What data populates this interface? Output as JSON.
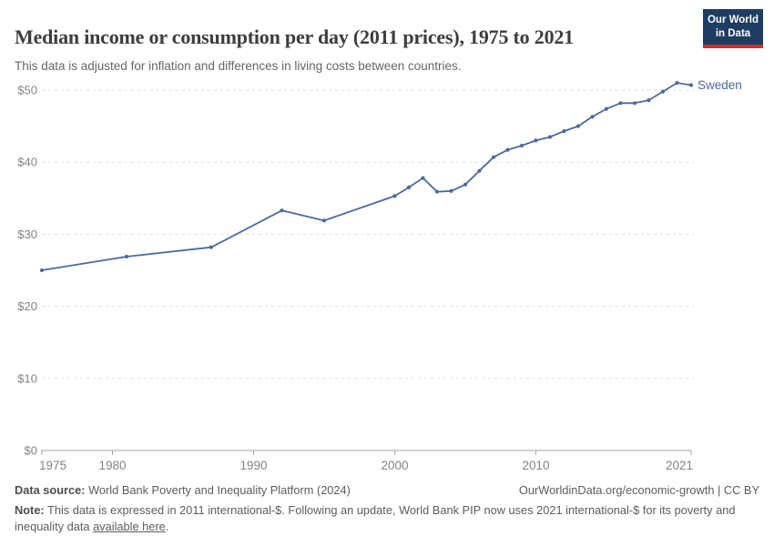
{
  "header": {
    "title": "Median income or consumption per day (2011 prices), 1975 to 2021",
    "subtitle": "This data is adjusted for inflation and differences in living costs between countries.",
    "logo": {
      "line1": "Our World",
      "line2": "in Data"
    }
  },
  "chart_data": {
    "type": "line",
    "title": "Median income or consumption per day (2011 prices), 1975 to 2021",
    "entity_label": "Sweden",
    "x_range": [
      1975,
      2021
    ],
    "ylim": [
      0,
      52
    ],
    "grid": "horizontal-dashed",
    "legend_position": "line-end-label",
    "x": [
      1975,
      1981,
      1987,
      1992,
      1995,
      2000,
      2001,
      2002,
      2003,
      2004,
      2005,
      2006,
      2007,
      2008,
      2009,
      2010,
      2011,
      2012,
      2013,
      2014,
      2015,
      2016,
      2017,
      2018,
      2019,
      2020,
      2021
    ],
    "series": [
      {
        "name": "Sweden",
        "values": [
          25.0,
          26.9,
          28.2,
          33.3,
          31.9,
          35.3,
          36.5,
          37.8,
          35.9,
          36.0,
          36.9,
          38.8,
          40.7,
          41.7,
          42.3,
          43.0,
          43.5,
          44.3,
          45.0,
          46.3,
          47.4,
          48.2,
          48.2,
          48.6,
          49.8,
          51.0,
          50.7
        ]
      }
    ],
    "y_ticks": [
      {
        "value": 0,
        "label": "$0"
      },
      {
        "value": 10,
        "label": "$10"
      },
      {
        "value": 20,
        "label": "$20"
      },
      {
        "value": 30,
        "label": "$30"
      },
      {
        "value": 40,
        "label": "$40"
      },
      {
        "value": 50,
        "label": "$50"
      }
    ],
    "x_ticks": [
      {
        "value": 1975,
        "label": "1975"
      },
      {
        "value": 1980,
        "label": "1980"
      },
      {
        "value": 1990,
        "label": "1990"
      },
      {
        "value": 2000,
        "label": "2000"
      },
      {
        "value": 2010,
        "label": "2010"
      },
      {
        "value": 2021,
        "label": "2021"
      }
    ],
    "colors": {
      "line": "#4c6a9c",
      "entity_label": "#4c6a9c",
      "grid": "#dddddd",
      "axis": "#a3a3a3",
      "tick_text": "#848484"
    }
  },
  "footer": {
    "datasource_label": "Data source:",
    "datasource_value": " World Bank Poverty and Inequality Platform (2024)",
    "credit": "OurWorldinData.org/economic-growth | CC BY",
    "note_label": "Note:",
    "note_text_before_link": " This data is expressed in 2011 international-$. Following an update, World Bank PIP now uses 2021 international-$ for its poverty and inequality data ",
    "note_link": "available here",
    "note_text_after_link": "."
  }
}
